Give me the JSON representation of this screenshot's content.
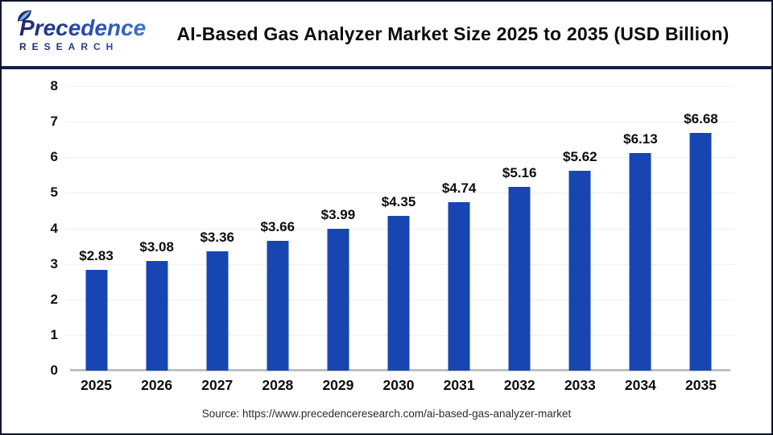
{
  "header": {
    "logo": {
      "line1": "Precedence",
      "line2": "RESEARCH"
    },
    "title": "AI-Based Gas Analyzer Market Size 2025 to 2035 (USD Billion)"
  },
  "chart_data": {
    "type": "bar",
    "title": "AI-Based Gas Analyzer Market Size 2025 to 2035 (USD Billion)",
    "categories": [
      "2025",
      "2026",
      "2027",
      "2028",
      "2029",
      "2030",
      "2031",
      "2032",
      "2033",
      "2034",
      "2035"
    ],
    "values": [
      2.83,
      3.08,
      3.36,
      3.66,
      3.99,
      4.35,
      4.74,
      5.16,
      5.62,
      6.13,
      6.68
    ],
    "value_labels": [
      "$2.83",
      "$3.08",
      "$3.36",
      "$3.66",
      "$3.99",
      "$4.35",
      "$4.74",
      "$5.16",
      "$5.62",
      "$6.13",
      "$6.68"
    ],
    "xlabel": "",
    "ylabel": "",
    "ylim": [
      0,
      8
    ],
    "ytick_step": 1,
    "yticks": [
      0,
      1,
      2,
      3,
      4,
      5,
      6,
      7,
      8
    ],
    "grid": true,
    "legend": "none",
    "bar_color": "#1745b2",
    "unit": "USD Billion"
  },
  "footer": {
    "source": "Source: https://www.precedenceresearch.com/ai-based-gas-analyzer-market"
  },
  "colors": {
    "bar": "#1745b2",
    "header_rule": "#161e45",
    "gridline": "#f0f0f0",
    "axis_line": "#bcbfc3",
    "title_text": "#0c0c0c",
    "logo_dark_blue": "#1c2a6e",
    "logo_light_blue": "#3f7bd6"
  }
}
